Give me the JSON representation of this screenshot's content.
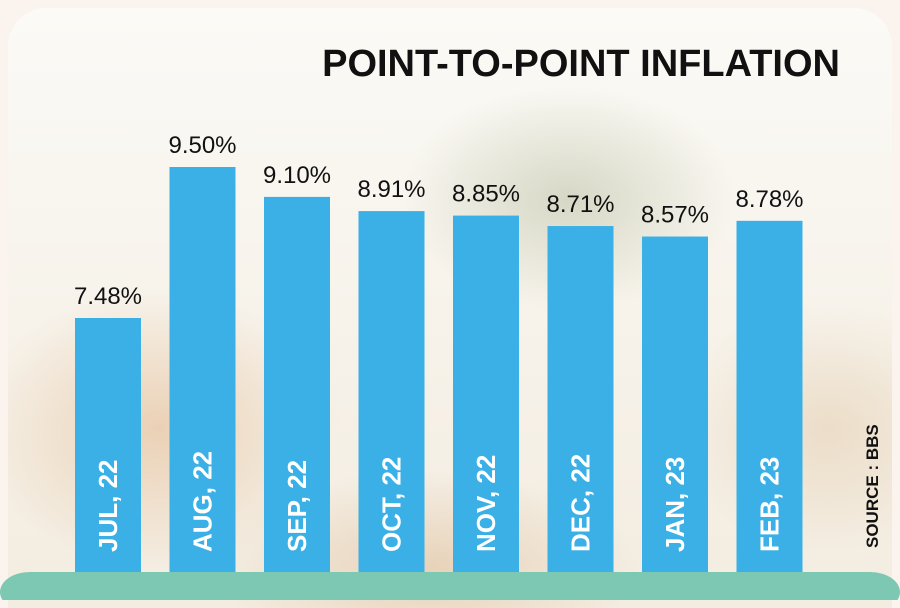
{
  "chart_data": {
    "type": "bar",
    "title": "POINT-TO-POINT INFLATION",
    "categories": [
      "JUL, 22",
      "AUG, 22",
      "SEP, 22",
      "OCT, 22",
      "NOV, 22",
      "DEC, 22",
      "JAN, 23",
      "FEB, 23"
    ],
    "values": [
      7.48,
      9.5,
      9.1,
      8.91,
      8.85,
      8.71,
      8.57,
      8.78
    ],
    "value_labels": [
      "7.48%",
      "9.50%",
      "9.10%",
      "8.91%",
      "8.85%",
      "8.71%",
      "8.57%",
      "8.78%"
    ],
    "source": "SOURCE : BBS",
    "bar_color": "#3ab0e6",
    "footer_color": "#7dc8b3"
  }
}
